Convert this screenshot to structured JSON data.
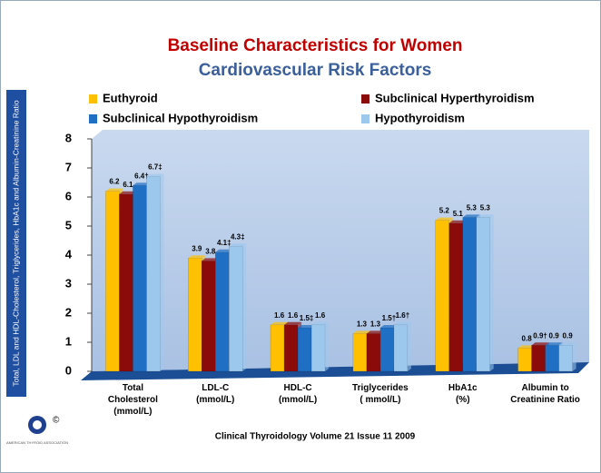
{
  "chart_data": {
    "type": "bar",
    "title": "Baseline Characteristics for Women",
    "subtitle": "Cardiovascular Risk Factors",
    "y_label": "Total, LDL and HDL-Cholesterol, Triglycerides, HbA1c and Albumin-Creatinine Ratio",
    "footer": "Clinical Thyroidology Volume 21 Issue 11 2009",
    "logo_text": "AMERICAN THYROID ASSOCIATION",
    "logo_mark": "©",
    "categories": [
      "Total\nCholesterol\n(mmol/L)",
      "LDL-C\n(mmol/L)",
      "HDL-C\n(mmol/L)",
      "Triglycerides\n( mmol/L)",
      "HbA1c\n(%)",
      "Albumin to\nCreatinine Ratio"
    ],
    "series": [
      {
        "name": "Euthyroid",
        "color": "#ffc000",
        "values": [
          6.2,
          3.9,
          1.6,
          1.3,
          5.2,
          0.8
        ],
        "value_labels": [
          "6.2",
          "3.9",
          "1.6",
          "1.3",
          "5.2",
          "0.8"
        ]
      },
      {
        "name": "Subclinical Hyperthyroidism",
        "color": "#8b0a0a",
        "values": [
          6.1,
          3.8,
          1.6,
          1.3,
          5.1,
          0.9
        ],
        "value_labels": [
          "6.1",
          "3.8",
          "1.6",
          "1.3",
          "5.1",
          "0.9†"
        ]
      },
      {
        "name": "Subclinical Hypothyroidism",
        "color": "#1f6fc4",
        "values": [
          6.4,
          4.1,
          1.5,
          1.5,
          5.3,
          0.9
        ],
        "value_labels": [
          "6.4†",
          "4.1‡",
          "1.5‡",
          "1.5†",
          "5.3",
          "0.9"
        ]
      },
      {
        "name": "Hypothyroidism",
        "color": "#9dc8ee",
        "values": [
          6.7,
          4.3,
          1.6,
          1.6,
          5.3,
          0.9
        ],
        "value_labels": [
          "6.7‡",
          "4.3‡",
          "1.6",
          "1.6†",
          "5.3",
          "0.9"
        ]
      }
    ],
    "ylim": [
      0,
      8
    ],
    "yticks": [
      0,
      1,
      2,
      3,
      4,
      5,
      6,
      7,
      8
    ]
  }
}
